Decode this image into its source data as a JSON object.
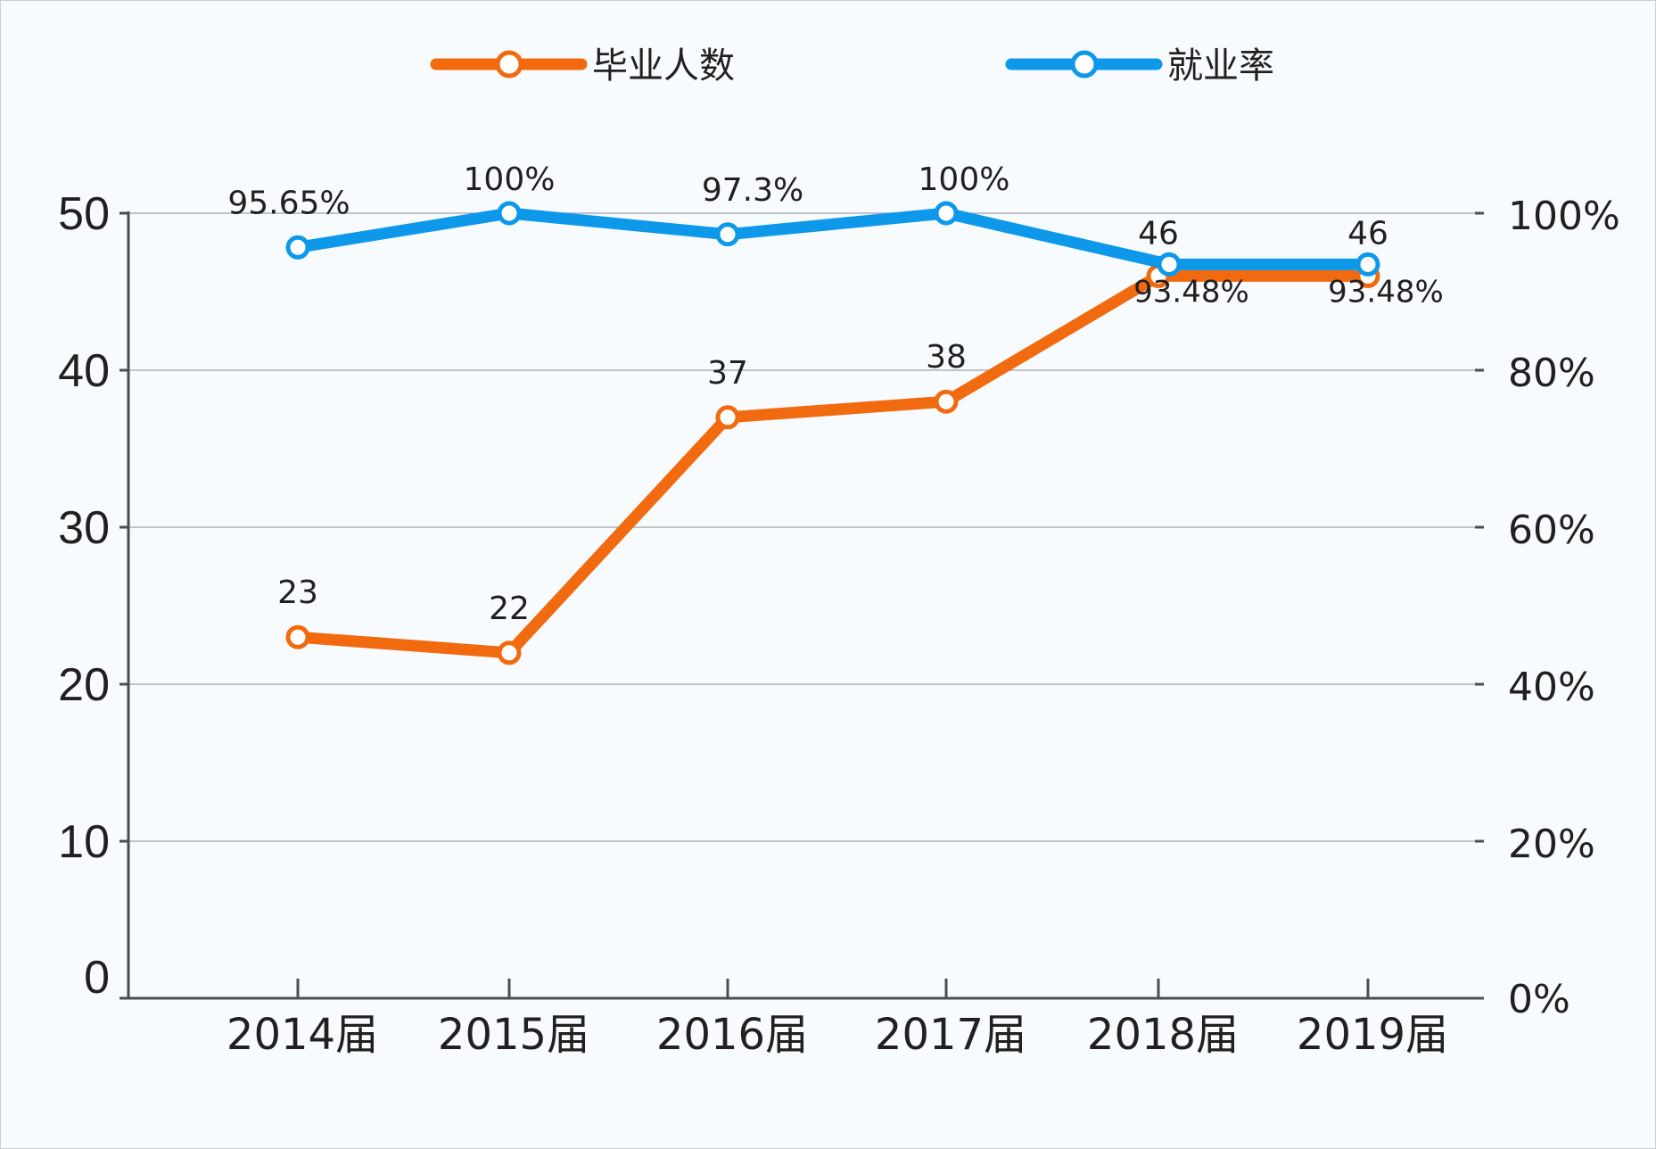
{
  "chart_data": {
    "type": "line",
    "title": "",
    "categories": [
      "2014届",
      "2015届",
      "2016届",
      "2017届",
      "2018届",
      "2019届"
    ],
    "series": [
      {
        "name": "毕业人数",
        "axis": "left",
        "color": "#f26a0f",
        "values": [
          23,
          22,
          37,
          38,
          46,
          46
        ],
        "labels": [
          "23",
          "22",
          "37",
          "38",
          "46",
          "46"
        ]
      },
      {
        "name": "就业率",
        "axis": "right",
        "color": "#0d98ea",
        "values": [
          95.65,
          100,
          97.3,
          100,
          93.48,
          93.48
        ],
        "labels": [
          "95.65%",
          "100%",
          "97.3%",
          "100%",
          "93.48%",
          "93.48%"
        ]
      }
    ],
    "left_axis": {
      "ticks": [
        "0",
        "10",
        "20",
        "30",
        "40",
        "50"
      ],
      "values": [
        0,
        10,
        20,
        30,
        40,
        50
      ],
      "ylim": [
        0,
        50
      ]
    },
    "right_axis": {
      "ticks": [
        "0%",
        "20%",
        "40%",
        "60%",
        "80%",
        "100%"
      ],
      "values": [
        0,
        20,
        40,
        60,
        80,
        100
      ],
      "ylim": [
        0,
        100
      ]
    },
    "grid": true,
    "legend_position": "top-center"
  }
}
